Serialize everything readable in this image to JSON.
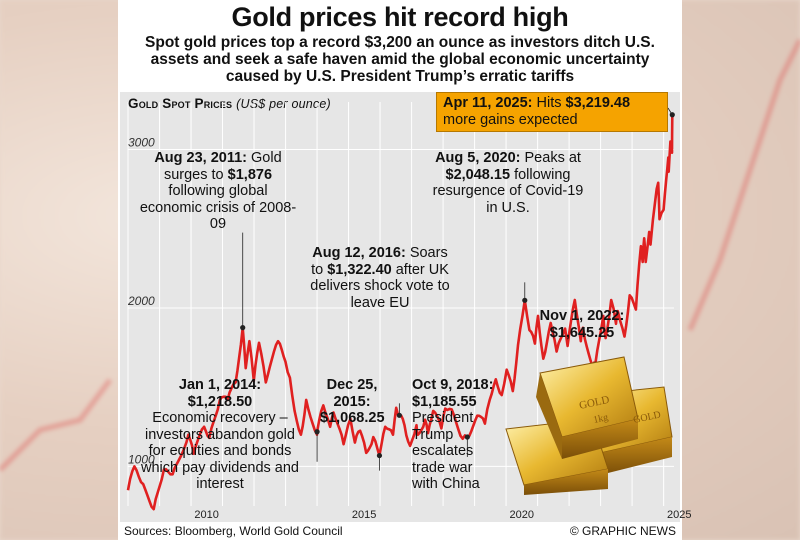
{
  "title": "Gold prices hit record high",
  "subtitle": "Spot gold prices top a record $3,200 an ounce as investors ditch U.S. assets and seek a safe haven amid the global economic uncertainty caused by U.S. President Trump’s erratic tariffs",
  "chart_heading": "Gold Spot Prices",
  "chart_unit": "(US$ per ounce)",
  "colors": {
    "line": "#e02020",
    "callout": "#f5a300",
    "grid": "#ffffff",
    "panel_bg": "#e6e6e6"
  },
  "annotations": {
    "a2011": {
      "date": "Aug 23, 2011:",
      "pre": "Gold surges to",
      "value": "$1,876",
      "post": "following global economic crisis of 2008-09"
    },
    "a2014": {
      "date": "Jan 1, 2014:",
      "value": "$1,218.50",
      "post": "Economic recovery – investors abandon gold for equities and bonds which pay dividends and interest"
    },
    "a2015": {
      "date": "Dec 25, 2015:",
      "value": "$1,068.25"
    },
    "a2016": {
      "date": "Aug 12, 2016:",
      "pre": "Soars to",
      "value": "$1,322.40",
      "post": "after UK delivers shock vote to leave EU"
    },
    "a2018": {
      "date": "Oct 9, 2018:",
      "value": "$1,185.55",
      "post": "President Trump escalates trade war with China"
    },
    "a2020": {
      "date": "Aug 5, 2020:",
      "pre": "Peaks at",
      "value": "$2,048.15",
      "post": "following resurgence of Covid-19 in U.S."
    },
    "a2022": {
      "date": "Nov 1, 2022:",
      "value": "$1,645.25"
    },
    "a2025": {
      "date": "Apr 11, 2025:",
      "pre": "Hits",
      "value": "$3,219.48",
      "post": "more gains expected"
    }
  },
  "gold_bar_label": "GOLD",
  "gold_bar_weight": "1kg",
  "footer": {
    "sources": "Sources: Bloomberg, World Gold Council",
    "credit": "© GRAPHIC NEWS"
  },
  "chart_data": {
    "type": "line",
    "title": "Gold Spot Prices",
    "ylabel": "(US$ per ounce)",
    "xlim": [
      "2008-01-01",
      "2025-05-01"
    ],
    "ylim": [
      750,
      3300
    ],
    "y_ticks": [
      1000,
      2000,
      3000
    ],
    "x_ticks": [
      "2010",
      "2015",
      "2020",
      "2025"
    ],
    "grid": true,
    "series": [
      {
        "color": "#e02020",
        "points": [
          [
            "2008-01-01",
            850
          ],
          [
            "2008-03-15",
            1000
          ],
          [
            "2008-06-01",
            900
          ],
          [
            "2008-10-25",
            730
          ],
          [
            "2009-02-20",
            980
          ],
          [
            "2009-06-01",
            950
          ],
          [
            "2009-12-01",
            1200
          ],
          [
            "2010-02-01",
            1080
          ],
          [
            "2010-06-01",
            1250
          ],
          [
            "2010-08-01",
            1180
          ],
          [
            "2010-12-01",
            1420
          ],
          [
            "2011-03-01",
            1420
          ],
          [
            "2011-06-01",
            1530
          ],
          [
            "2011-08-23",
            1876
          ],
          [
            "2011-09-26",
            1620
          ],
          [
            "2011-11-08",
            1790
          ],
          [
            "2011-12-29",
            1540
          ],
          [
            "2012-02-28",
            1780
          ],
          [
            "2012-05-16",
            1530
          ],
          [
            "2012-10-05",
            1790
          ],
          [
            "2012-12-31",
            1660
          ],
          [
            "2013-02-20",
            1560
          ],
          [
            "2013-04-15",
            1350
          ],
          [
            "2013-06-28",
            1200
          ],
          [
            "2013-08-28",
            1420
          ],
          [
            "2013-12-31",
            1200
          ],
          [
            "2014-01-01",
            1218.5
          ],
          [
            "2014-03-14",
            1385
          ],
          [
            "2014-06-01",
            1250
          ],
          [
            "2014-07-10",
            1340
          ],
          [
            "2014-11-05",
            1140
          ],
          [
            "2015-01-22",
            1300
          ],
          [
            "2015-03-15",
            1150
          ],
          [
            "2015-05-15",
            1225
          ],
          [
            "2015-07-24",
            1085
          ],
          [
            "2015-10-15",
            1185
          ],
          [
            "2015-12-25",
            1068.25
          ],
          [
            "2016-03-01",
            1250
          ],
          [
            "2016-05-30",
            1200
          ],
          [
            "2016-07-06",
            1370
          ],
          [
            "2016-08-12",
            1322.4
          ],
          [
            "2016-10-10",
            1260
          ],
          [
            "2016-12-15",
            1130
          ],
          [
            "2017-02-27",
            1260
          ],
          [
            "2017-03-15",
            1200
          ],
          [
            "2017-06-06",
            1295
          ],
          [
            "2017-07-10",
            1210
          ],
          [
            "2017-09-08",
            1350
          ],
          [
            "2017-12-12",
            1240
          ],
          [
            "2018-01-25",
            1365
          ],
          [
            "2018-04-11",
            1360
          ],
          [
            "2018-08-16",
            1175
          ],
          [
            "2018-10-09",
            1185.55
          ],
          [
            "2019-01-31",
            1320
          ],
          [
            "2019-05-01",
            1270
          ],
          [
            "2019-06-25",
            1420
          ],
          [
            "2019-09-04",
            1550
          ],
          [
            "2019-11-12",
            1450
          ],
          [
            "2020-01-08",
            1610
          ],
          [
            "2020-03-19",
            1475
          ],
          [
            "2020-05-18",
            1765
          ],
          [
            "2020-08-05",
            2048.15
          ],
          [
            "2020-09-28",
            1860
          ],
          [
            "2020-11-30",
            1775
          ],
          [
            "2021-01-05",
            1950
          ],
          [
            "2021-03-08",
            1680
          ],
          [
            "2021-06-01",
            1905
          ],
          [
            "2021-08-09",
            1725
          ],
          [
            "2021-11-16",
            1870
          ],
          [
            "2021-12-15",
            1760
          ],
          [
            "2022-03-08",
            2050
          ],
          [
            "2022-05-16",
            1790
          ],
          [
            "2022-06-10",
            1875
          ],
          [
            "2022-09-28",
            1630
          ],
          [
            "2022-11-01",
            1645.25
          ],
          [
            "2023-02-01",
            1950
          ],
          [
            "2023-02-28",
            1810
          ],
          [
            "2023-05-04",
            2050
          ],
          [
            "2023-06-29",
            1900
          ],
          [
            "2023-07-20",
            1980
          ],
          [
            "2023-10-05",
            1820
          ],
          [
            "2023-12-04",
            2080
          ],
          [
            "2024-02-14",
            1990
          ],
          [
            "2024-04-12",
            2390
          ],
          [
            "2024-05-03",
            2290
          ],
          [
            "2024-05-20",
            2440
          ],
          [
            "2024-06-07",
            2290
          ],
          [
            "2024-07-17",
            2480
          ],
          [
            "2024-08-01",
            2400
          ],
          [
            "2024-09-26",
            2680
          ],
          [
            "2024-10-30",
            2790
          ],
          [
            "2024-11-14",
            2560
          ],
          [
            "2024-12-31",
            2620
          ],
          [
            "2025-01-31",
            2810
          ],
          [
            "2025-02-24",
            2950
          ],
          [
            "2025-02-28",
            2860
          ],
          [
            "2025-03-20",
            3050
          ],
          [
            "2025-04-08",
            2980
          ],
          [
            "2025-04-11",
            3219.48
          ]
        ]
      }
    ],
    "annotated_points": [
      [
        "2011-08-23",
        1876
      ],
      [
        "2014-01-01",
        1218.5
      ],
      [
        "2015-12-25",
        1068.25
      ],
      [
        "2016-08-12",
        1322.4
      ],
      [
        "2018-10-09",
        1185.55
      ],
      [
        "2020-08-05",
        2048.15
      ],
      [
        "2022-11-01",
        1645.25
      ],
      [
        "2025-04-11",
        3219.48
      ]
    ]
  }
}
